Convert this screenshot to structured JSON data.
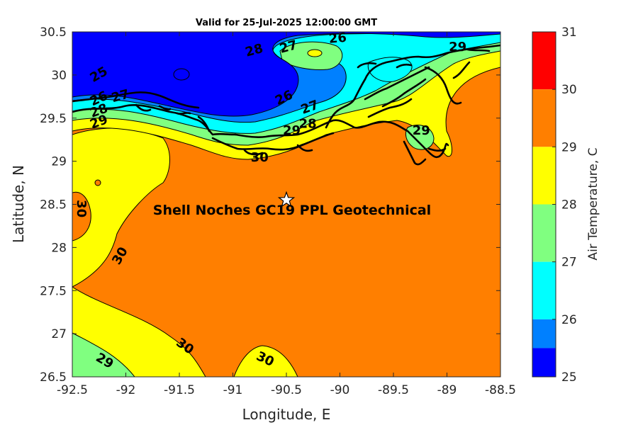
{
  "title": "Valid for 25-Jul-2025 12:00:00 GMT",
  "xlabel": "Longitude, E",
  "ylabel": "Latitude, N",
  "x_ticks": [
    "-92.5",
    "-92",
    "-91.5",
    "-91",
    "-90.5",
    "-90",
    "-89.5",
    "-89",
    "-88.5"
  ],
  "y_ticks": [
    "30.5",
    "30",
    "29.5",
    "29",
    "28.5",
    "28",
    "27.5",
    "27",
    "26.5"
  ],
  "colorbar": {
    "label": "Air Temperature, C",
    "ticks": [
      "31",
      "30",
      "29",
      "28",
      "27",
      "26",
      "25"
    ],
    "bands": [
      {
        "from": 30,
        "to": 31,
        "color": "#ff0000"
      },
      {
        "from": 29,
        "to": 30,
        "color": "#ff7f00"
      },
      {
        "from": 28,
        "to": 29,
        "color": "#ffff00"
      },
      {
        "from": 27,
        "to": 28,
        "color": "#80ff80"
      },
      {
        "from": 26,
        "to": 27,
        "color": "#00ffff"
      },
      {
        "from": 25.5,
        "to": 26,
        "color": "#0080ff"
      },
      {
        "from": 25,
        "to": 25.5,
        "color": "#0000ff"
      }
    ]
  },
  "site": {
    "name": "Shell Noches   GC19 PPL  Geotechnical",
    "lon": -90.5,
    "lat": 28.55,
    "marker": "star-icon"
  },
  "contour_labels": [
    {
      "text": "25",
      "lon": -92.25,
      "lat": 30.0,
      "angle": -30
    },
    {
      "text": "26",
      "lon": -92.25,
      "lat": 29.72,
      "angle": -25
    },
    {
      "text": "27",
      "lon": -92.05,
      "lat": 29.75,
      "angle": -15
    },
    {
      "text": "28",
      "lon": -92.25,
      "lat": 29.58,
      "angle": -20
    },
    {
      "text": "29",
      "lon": -92.25,
      "lat": 29.45,
      "angle": -20
    },
    {
      "text": "28",
      "lon": -90.8,
      "lat": 30.28,
      "angle": -15
    },
    {
      "text": "27",
      "lon": -90.48,
      "lat": 30.32,
      "angle": -15
    },
    {
      "text": "26",
      "lon": -90.02,
      "lat": 30.42,
      "angle": -5
    },
    {
      "text": "26",
      "lon": -90.52,
      "lat": 29.73,
      "angle": -25
    },
    {
      "text": "27",
      "lon": -90.28,
      "lat": 29.62,
      "angle": -20
    },
    {
      "text": "28",
      "lon": -90.3,
      "lat": 29.43,
      "angle": 0
    },
    {
      "text": "29",
      "lon": -90.45,
      "lat": 29.35,
      "angle": 0
    },
    {
      "text": "30",
      "lon": -90.75,
      "lat": 29.04,
      "angle": 0
    },
    {
      "text": "29",
      "lon": -89.24,
      "lat": 29.35,
      "angle": 0
    },
    {
      "text": "29",
      "lon": -88.9,
      "lat": 30.32,
      "angle": 0
    },
    {
      "text": "30",
      "lon": -92.42,
      "lat": 28.45,
      "angle": 90
    },
    {
      "text": "30",
      "lon": -92.05,
      "lat": 27.9,
      "angle": -60
    },
    {
      "text": "30",
      "lon": -91.45,
      "lat": 26.85,
      "angle": 35
    },
    {
      "text": "30",
      "lon": -90.7,
      "lat": 26.7,
      "angle": 25
    },
    {
      "text": "29",
      "lon": -92.2,
      "lat": 26.68,
      "angle": 30
    }
  ]
}
